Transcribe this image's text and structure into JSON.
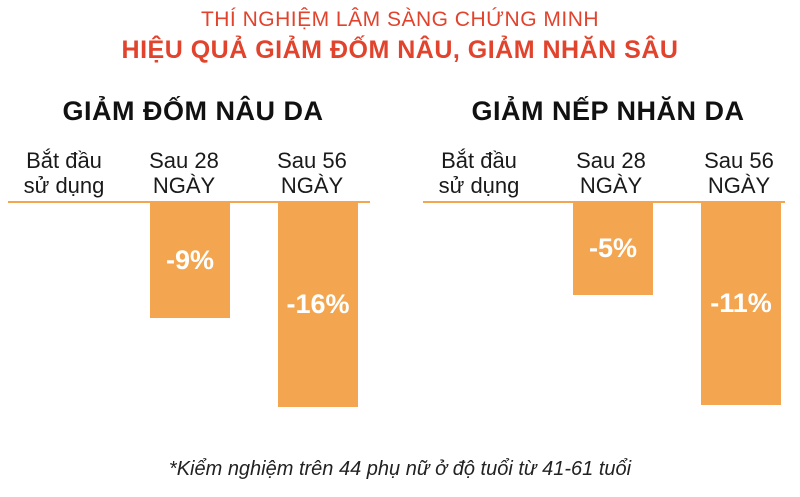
{
  "header": {
    "line1": "THÍ NGHIỆM LÂM SÀNG CHỨNG MINH",
    "line2": "HIỆU QUẢ GIẢM ĐỐM NÂU, GIẢM NHĂN SÂU"
  },
  "colors": {
    "accent": "#e1432d",
    "bar": "#f3a54f"
  },
  "chart_data": [
    {
      "type": "bar",
      "title": "GIẢM ĐỐM NÂU DA",
      "categories": [
        [
          "Bắt đầu",
          "sử dụng"
        ],
        [
          "Sau 28",
          "NGÀY"
        ],
        [
          "Sau 56",
          "NGÀY"
        ]
      ],
      "values": [
        0,
        -9,
        -16
      ],
      "labels": [
        "",
        "-9%",
        "-16%"
      ],
      "ylim": [
        -18,
        0
      ]
    },
    {
      "type": "bar",
      "title": "GIẢM NẾP NHĂN DA",
      "categories": [
        [
          "Bắt đầu",
          "sử dụng"
        ],
        [
          "Sau 28",
          "NGÀY"
        ],
        [
          "Sau 56",
          "NGÀY"
        ]
      ],
      "values": [
        0,
        -5,
        -11
      ],
      "labels": [
        "",
        "-5%",
        "-11%"
      ],
      "ylim": [
        -12.5,
        0
      ]
    }
  ],
  "footnote": "*Kiểm nghiệm trên 44 phụ nữ ở độ tuổi từ 41-61 tuổi"
}
